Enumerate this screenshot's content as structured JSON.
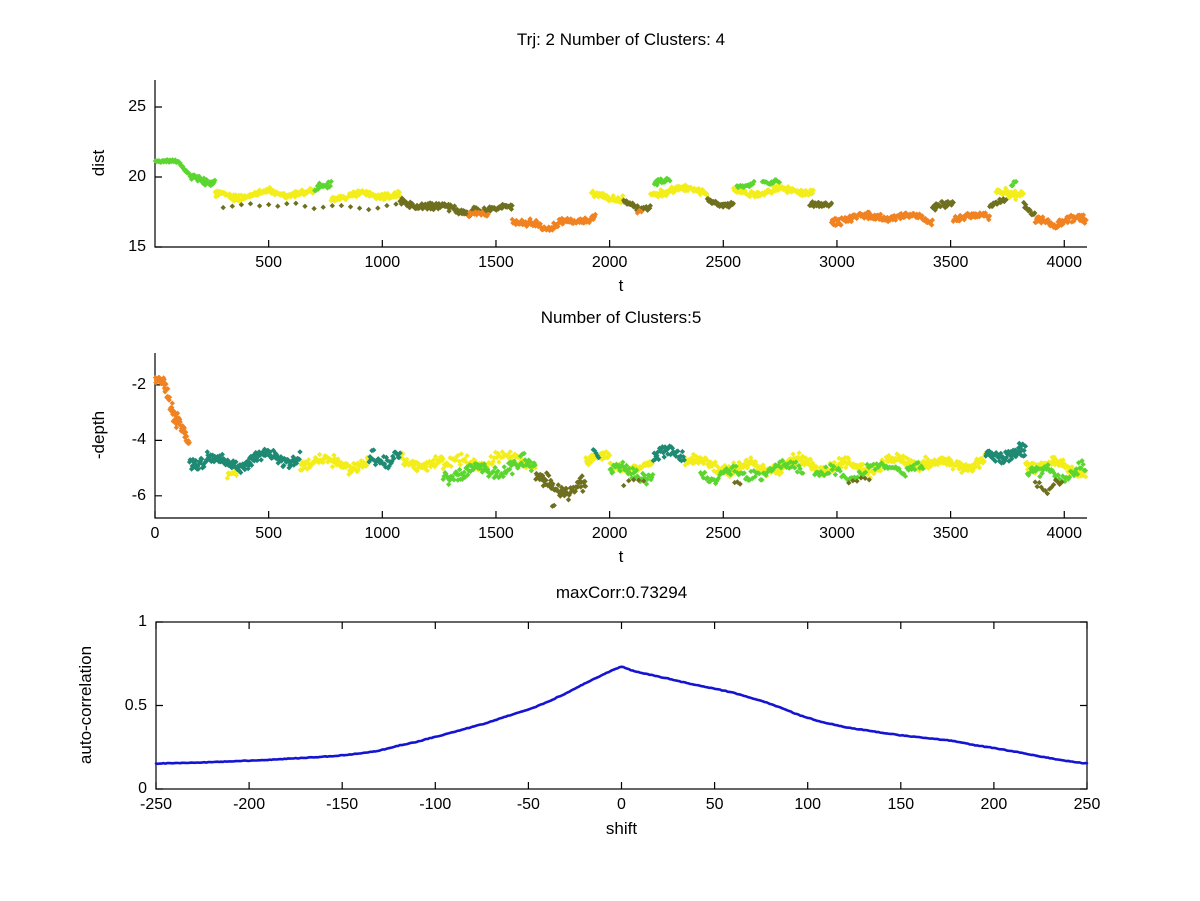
{
  "figure": {
    "background": "#ffffff",
    "axis_color": "#000000",
    "text_color": "#000000"
  },
  "chart_data": [
    {
      "id": "trajectory-distance",
      "type": "scatter",
      "title": "Trj: 2 Number of Clusters: 4",
      "xlabel": "t",
      "ylabel": "dist",
      "xlim": [
        0,
        4100
      ],
      "ylim": [
        15,
        26.93
      ],
      "xticks": [
        500,
        1000,
        1500,
        2000,
        2500,
        3000,
        3500,
        4000
      ],
      "yticks": [
        15,
        20,
        25
      ],
      "box": false,
      "grid": false,
      "marker": "diamond",
      "num_clusters": 4,
      "cluster_colors": {
        "green": "#5bd630",
        "yellow": "#f3ee1a",
        "olive": "#6f701f",
        "orange": "#f08221"
      },
      "segments": [
        [
          "green",
          2,
          110,
          21.1,
          21.0,
          0.09,
          3
        ],
        [
          "green",
          110,
          158,
          20.9,
          19.95,
          0.13,
          3
        ],
        [
          "green",
          158,
          265,
          19.95,
          19.8,
          0.2,
          3
        ],
        [
          "yellow",
          265,
          700,
          18.8,
          18.7,
          0.2,
          3
        ],
        [
          "olive",
          300,
          1060,
          17.95,
          17.9,
          0.12,
          40
        ],
        [
          "green",
          703,
          775,
          19.3,
          19.35,
          0.22,
          4
        ],
        [
          "yellow",
          775,
          1078,
          18.75,
          18.6,
          0.2,
          3
        ],
        [
          "olive",
          1078,
          1400,
          18.1,
          17.75,
          0.22,
          3
        ],
        [
          "orange",
          1380,
          1465,
          17.35,
          17.3,
          0.14,
          5
        ],
        [
          "olive",
          1400,
          1572,
          17.75,
          17.55,
          0.2,
          3
        ],
        [
          "orange",
          1572,
          1700,
          16.9,
          16.5,
          0.2,
          3
        ],
        [
          "orange",
          1700,
          1790,
          16.5,
          16.9,
          0.2,
          3
        ],
        [
          "orange",
          1790,
          1938,
          16.9,
          17.0,
          0.2,
          3
        ],
        [
          "yellow",
          1920,
          2062,
          18.55,
          18.4,
          0.22,
          3
        ],
        [
          "olive",
          2062,
          2180,
          18.1,
          18.0,
          0.18,
          3
        ],
        [
          "orange",
          2122,
          2140,
          17.6,
          17.6,
          0.1,
          9
        ],
        [
          "yellow",
          2180,
          2430,
          19.0,
          18.9,
          0.22,
          3
        ],
        [
          "green",
          2197,
          2268,
          19.55,
          19.5,
          0.18,
          4
        ],
        [
          "olive",
          2430,
          2545,
          18.25,
          18.2,
          0.16,
          3
        ],
        [
          "yellow",
          2545,
          2898,
          19.0,
          18.85,
          0.22,
          3
        ],
        [
          "green",
          2560,
          2636,
          19.5,
          19.5,
          0.16,
          5
        ],
        [
          "green",
          2672,
          2750,
          19.6,
          19.7,
          0.18,
          5
        ],
        [
          "olive",
          2880,
          2976,
          18.3,
          17.9,
          0.2,
          3
        ],
        [
          "orange",
          2976,
          3420,
          17.1,
          16.95,
          0.22,
          3
        ],
        [
          "olive",
          3420,
          3512,
          17.9,
          18.25,
          0.28,
          4
        ],
        [
          "orange",
          3512,
          3672,
          17.2,
          17.1,
          0.18,
          3
        ],
        [
          "olive",
          3672,
          3745,
          17.9,
          18.1,
          0.18,
          4
        ],
        [
          "yellow",
          3700,
          3822,
          18.7,
          19.05,
          0.26,
          3
        ],
        [
          "green",
          3768,
          3792,
          19.5,
          19.6,
          0.14,
          5
        ],
        [
          "olive",
          3822,
          3872,
          18.3,
          17.5,
          0.22,
          4
        ],
        [
          "orange",
          3872,
          3970,
          16.8,
          16.5,
          0.24,
          3
        ],
        [
          "orange",
          3970,
          4096,
          16.5,
          16.85,
          0.24,
          3
        ]
      ]
    },
    {
      "id": "trajectory-depth",
      "type": "scatter",
      "title": "Number of Clusters:5",
      "xlabel": "t",
      "ylabel": "-depth",
      "xlim": [
        0,
        4100
      ],
      "ylim": [
        -6.8,
        -0.85
      ],
      "xticks": [
        0,
        500,
        1000,
        1500,
        2000,
        2500,
        3000,
        3500,
        4000
      ],
      "yticks": [
        -6,
        -4,
        -2
      ],
      "box": false,
      "grid": false,
      "marker": "diamond",
      "num_clusters": 5,
      "cluster_colors": {
        "green": "#5bd630",
        "yellow": "#f3ee1a",
        "olive": "#6f701f",
        "orange": "#f08221",
        "teal": "#1e8a73"
      },
      "segments": [
        [
          "orange",
          2,
          40,
          -1.8,
          -2.1,
          0.18,
          2
        ],
        [
          "orange",
          40,
          95,
          -2.1,
          -3.4,
          0.25,
          2
        ],
        [
          "orange",
          95,
          152,
          -3.4,
          -4.35,
          0.2,
          2
        ],
        [
          "teal",
          152,
          640,
          -4.65,
          -4.72,
          0.2,
          3
        ],
        [
          "yellow",
          318,
          368,
          -5.0,
          -5.15,
          0.18,
          4
        ],
        [
          "yellow",
          640,
          942,
          -4.72,
          -4.75,
          0.18,
          3
        ],
        [
          "teal",
          942,
          1078,
          -4.68,
          -4.72,
          0.22,
          4
        ],
        [
          "yellow",
          1078,
          1268,
          -4.8,
          -4.82,
          0.18,
          3
        ],
        [
          "green",
          1268,
          1675,
          -5.05,
          -5.1,
          0.2,
          4
        ],
        [
          "yellow",
          1268,
          1675,
          -4.78,
          -4.85,
          0.18,
          5
        ],
        [
          "olive",
          1675,
          1895,
          -5.45,
          -5.6,
          0.25,
          3
        ],
        [
          "olive",
          1748,
          1756,
          -6.25,
          -6.3,
          0.05,
          8
        ],
        [
          "yellow",
          1895,
          2002,
          -4.78,
          -4.8,
          0.16,
          3
        ],
        [
          "teal",
          1928,
          1952,
          -4.6,
          -4.75,
          0.18,
          6
        ],
        [
          "green",
          2002,
          2192,
          -5.1,
          -5.05,
          0.18,
          4
        ],
        [
          "yellow",
          2002,
          2192,
          -4.85,
          -4.85,
          0.14,
          6
        ],
        [
          "olive",
          2062,
          2162,
          -5.5,
          -5.5,
          0.12,
          22
        ],
        [
          "teal",
          2192,
          2330,
          -4.58,
          -4.68,
          0.2,
          4
        ],
        [
          "yellow",
          2330,
          2850,
          -4.85,
          -4.9,
          0.18,
          3
        ],
        [
          "green",
          2400,
          2850,
          -5.1,
          -5.08,
          0.18,
          6
        ],
        [
          "olive",
          2550,
          2578,
          -5.5,
          -5.5,
          0.1,
          12
        ],
        [
          "yellow",
          2850,
          3402,
          -4.88,
          -4.86,
          0.18,
          3
        ],
        [
          "green",
          2902,
          3382,
          -5.12,
          -5.08,
          0.18,
          7
        ],
        [
          "olive",
          3052,
          3152,
          -5.48,
          -5.45,
          0.14,
          18
        ],
        [
          "yellow",
          3402,
          3652,
          -4.78,
          -4.74,
          0.18,
          3
        ],
        [
          "teal",
          3655,
          3830,
          -4.55,
          -4.65,
          0.22,
          3
        ],
        [
          "yellow",
          3830,
          4096,
          -4.8,
          -4.92,
          0.18,
          3
        ],
        [
          "green",
          3838,
          4096,
          -5.1,
          -5.0,
          0.2,
          5
        ],
        [
          "olive",
          3872,
          3990,
          -5.42,
          -5.5,
          0.2,
          9
        ]
      ]
    },
    {
      "id": "autocorrelation",
      "type": "line",
      "title": "maxCorr:0.73294",
      "max_corr": 0.73294,
      "xlabel": "shift",
      "ylabel": "auto-correlation",
      "xlim": [
        -250,
        250
      ],
      "ylim": [
        0,
        1
      ],
      "xticks": [
        -250,
        -200,
        -150,
        -100,
        -50,
        0,
        50,
        100,
        150,
        200,
        250
      ],
      "yticks": [
        0,
        0.5,
        1
      ],
      "box": true,
      "grid": false,
      "line_color": "#1414d2",
      "points": [
        [
          -250,
          0.152
        ],
        [
          -235,
          0.156
        ],
        [
          -220,
          0.161
        ],
        [
          -205,
          0.168
        ],
        [
          -190,
          0.174
        ],
        [
          -175,
          0.184
        ],
        [
          -160,
          0.193
        ],
        [
          -150,
          0.202
        ],
        [
          -140,
          0.213
        ],
        [
          -130,
          0.23
        ],
        [
          -119,
          0.262
        ],
        [
          -110,
          0.282
        ],
        [
          -101,
          0.31
        ],
        [
          -92,
          0.335
        ],
        [
          -83,
          0.363
        ],
        [
          -74,
          0.39
        ],
        [
          -65,
          0.423
        ],
        [
          -56,
          0.455
        ],
        [
          -47,
          0.488
        ],
        [
          -38,
          0.53
        ],
        [
          -29,
          0.577
        ],
        [
          -20,
          0.63
        ],
        [
          -11,
          0.679
        ],
        [
          -5,
          0.71
        ],
        [
          0,
          0.733
        ],
        [
          6,
          0.708
        ],
        [
          15,
          0.685
        ],
        [
          25,
          0.661
        ],
        [
          33,
          0.64
        ],
        [
          42,
          0.619
        ],
        [
          51,
          0.598
        ],
        [
          60,
          0.577
        ],
        [
          69,
          0.548
        ],
        [
          78,
          0.518
        ],
        [
          87,
          0.48
        ],
        [
          96,
          0.44
        ],
        [
          108,
          0.4
        ],
        [
          121,
          0.369
        ],
        [
          135,
          0.345
        ],
        [
          150,
          0.322
        ],
        [
          163,
          0.305
        ],
        [
          177,
          0.29
        ],
        [
          190,
          0.262
        ],
        [
          200,
          0.245
        ],
        [
          213,
          0.22
        ],
        [
          225,
          0.195
        ],
        [
          237,
          0.172
        ],
        [
          248,
          0.155
        ],
        [
          250,
          0.152
        ]
      ]
    }
  ]
}
